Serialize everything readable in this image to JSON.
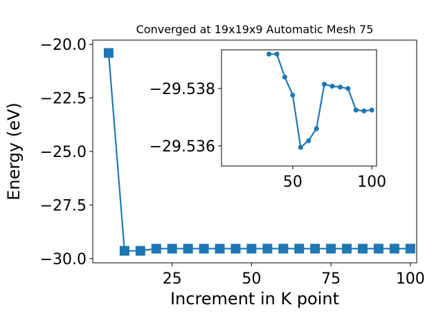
{
  "chart_data": [
    {
      "type": "line",
      "title": "Converged at 19x19x9 Automatic Mesh 75",
      "xlabel": "Increment in K point",
      "ylabel": "Energy (eV)",
      "xlim": [
        0,
        102
      ],
      "ylim": [
        -30.2,
        -19.8
      ],
      "xticks": [
        25,
        50,
        75,
        100
      ],
      "yticks": [
        -20.0,
        -22.5,
        -25.0,
        -27.5,
        -30.0
      ],
      "xtick_labels": [
        "25",
        "50",
        "75",
        "100"
      ],
      "ytick_labels": [
        "−20.0",
        "−22.5",
        "−25.0",
        "−27.5",
        "−30.0"
      ],
      "marker": "square",
      "color": "#1f77b4",
      "grid": false,
      "series": [
        {
          "x": [
            5,
            10,
            15,
            20,
            25,
            30,
            35,
            40,
            45,
            50,
            55,
            60,
            65,
            70,
            75,
            80,
            85,
            90,
            95,
            100
          ],
          "y": [
            -20.4,
            -29.64,
            -29.6393,
            -29.539,
            -29.5385,
            -29.5382,
            -29.5392,
            -29.5392,
            -29.5384,
            -29.53777,
            -29.53595,
            -29.53618,
            -29.5366,
            -29.53815,
            -29.53808,
            -29.53805,
            -29.538,
            -29.53725,
            -29.53722,
            -29.53725
          ]
        }
      ]
    },
    {
      "type": "line",
      "title": "",
      "xlabel": "",
      "ylabel": "",
      "xlim": [
        5,
        103
      ],
      "ylim": [
        -29.5353,
        -29.53935
      ],
      "xticks": [
        50,
        100
      ],
      "yticks": [
        -29.538,
        -29.536
      ],
      "xtick_labels": [
        "50",
        "100"
      ],
      "ytick_labels": [
        "−29.538",
        "−29.536"
      ],
      "marker": "circle",
      "color": "#1f77b4",
      "grid": false,
      "series": [
        {
          "x": [
            35,
            40,
            45,
            50,
            55,
            60,
            65,
            70,
            75,
            80,
            85,
            90,
            95,
            100
          ],
          "y": [
            -29.5392,
            -29.5392,
            -29.5384,
            -29.53777,
            -29.53595,
            -29.53618,
            -29.5366,
            -29.53815,
            -29.53808,
            -29.53805,
            -29.538,
            -29.53725,
            -29.53722,
            -29.53725
          ]
        }
      ]
    }
  ]
}
